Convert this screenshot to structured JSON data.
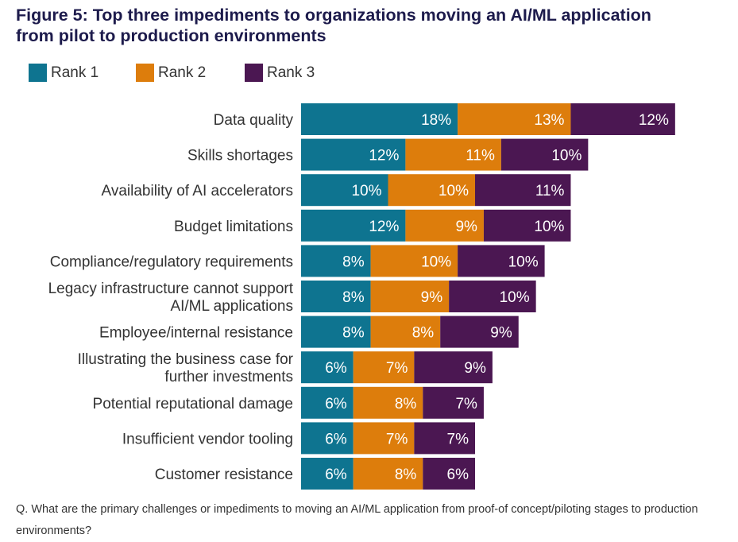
{
  "title_lines": [
    "Figure 5: Top three impediments to organizations moving an AI/ML application",
    "from pilot to production environments"
  ],
  "footnote": "Q. What are the primary challenges or impediments to moving an AI/ML application from proof-of concept/piloting stages to production environments?",
  "colors": {
    "rank1": "#0e7490",
    "rank2": "#dd7d0c",
    "rank3": "#4b1752",
    "bar_text": "#ffffff",
    "category_text": "#333333"
  },
  "chart_data": {
    "type": "bar",
    "orientation": "horizontal",
    "stacked": true,
    "categories": [
      [
        "Data quality"
      ],
      [
        "Skills shortages"
      ],
      [
        "Availability of AI accelerators"
      ],
      [
        "Budget limitations"
      ],
      [
        "Compliance/regulatory requirements"
      ],
      [
        "Legacy infrastructure cannot support",
        "AI/ML applications"
      ],
      [
        "Employee/internal resistance"
      ],
      [
        "Illustrating the business case for",
        "further investments"
      ],
      [
        "Potential reputational damage"
      ],
      [
        "Insufficient vendor tooling"
      ],
      [
        "Customer resistance"
      ]
    ],
    "series": [
      {
        "name": "Rank 1",
        "color": "#0e7490",
        "values": [
          18,
          12,
          10,
          12,
          8,
          8,
          8,
          6,
          6,
          6,
          6
        ],
        "labels": [
          "18%",
          "12%",
          "10%",
          "12%",
          "8%",
          "8%",
          "8%",
          "6%",
          "6%",
          "6%",
          "6%"
        ]
      },
      {
        "name": "Rank 2",
        "color": "#dd7d0c",
        "values": [
          13,
          11,
          10,
          9,
          10,
          9,
          8,
          7,
          8,
          7,
          8
        ],
        "labels": [
          "13%",
          "11%",
          "10%",
          "9%",
          "10%",
          "9%",
          "8%",
          "7%",
          "8%",
          "7%",
          "8%"
        ]
      },
      {
        "name": "Rank 3",
        "color": "#4b1752",
        "values": [
          12,
          10,
          11,
          10,
          10,
          10,
          9,
          9,
          7,
          7,
          6
        ],
        "labels": [
          "12%",
          "10%",
          "11%",
          "10%",
          "10%",
          "10%",
          "9%",
          "9%",
          "7%",
          "7%",
          "6%"
        ]
      }
    ],
    "unit": "%",
    "xlim": [
      0,
      43
    ],
    "grid": false,
    "legend_position": "top-left"
  }
}
